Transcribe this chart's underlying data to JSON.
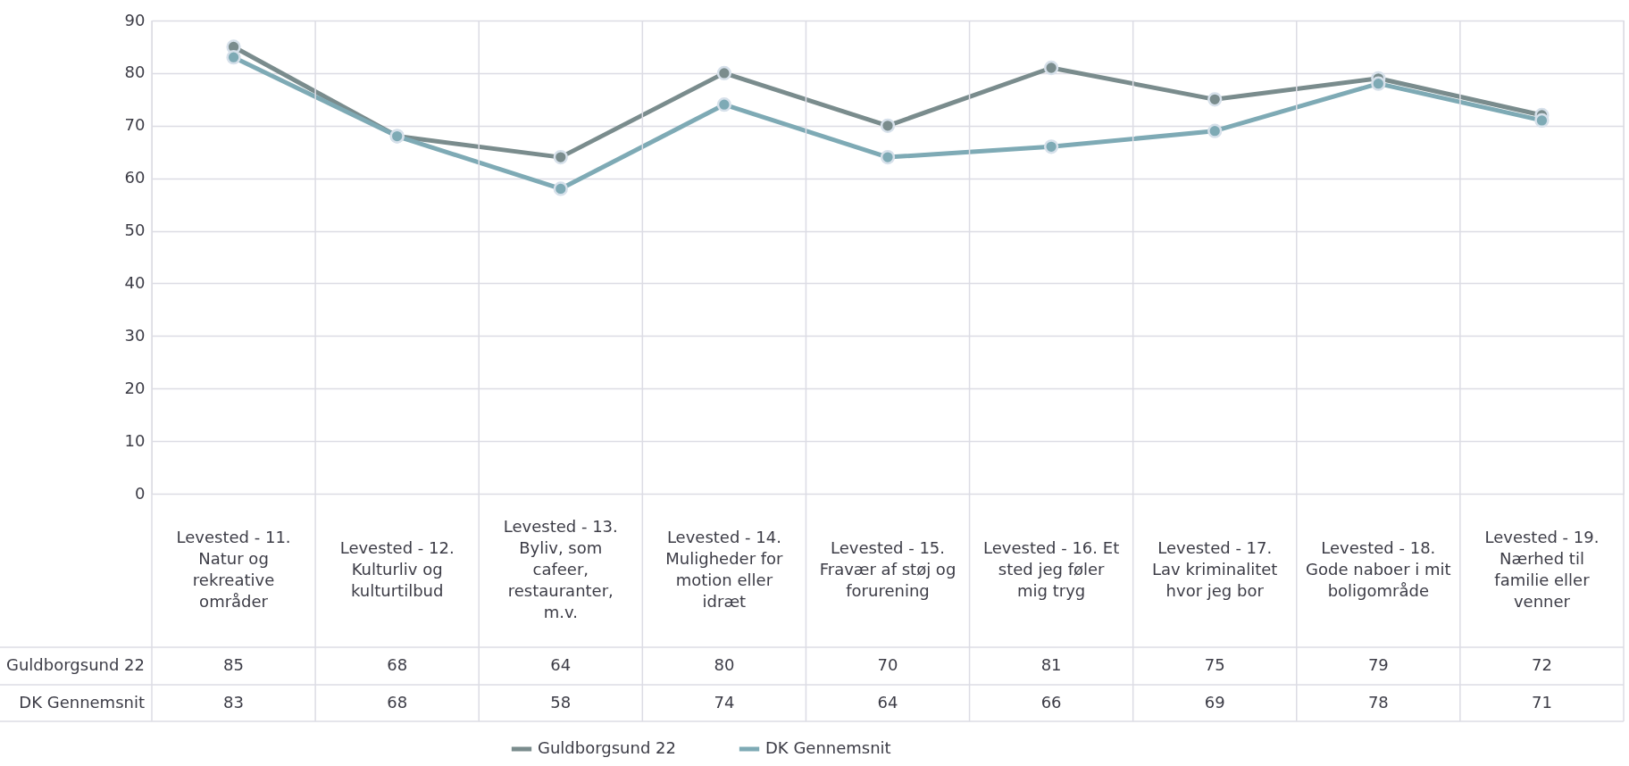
{
  "chart_data": {
    "type": "line",
    "categories": [
      "Levested - 11. Natur og rekreative områder",
      "Levested - 12. Kulturliv og kulturtilbud",
      "Levested - 13. Byliv, som cafeer, restauranter, m.v.",
      "Levested - 14. Muligheder for motion eller idræt",
      "Levested - 15. Fravær af støj og forurening",
      "Levested - 16. Et sted jeg føler mig tryg",
      "Levested - 17. Lav kriminalitet hvor jeg bor",
      "Levested - 18. Gode naboer i mit boligområde",
      "Levested - 19. Nærhed til familie eller venner"
    ],
    "series": [
      {
        "name": "Guldborgsund 22",
        "color": "#7a8c8d",
        "values": [
          85,
          68,
          64,
          80,
          70,
          81,
          75,
          79,
          72
        ]
      },
      {
        "name": "DK Gennemsnit",
        "color": "#7eaab5",
        "values": [
          83,
          68,
          58,
          74,
          64,
          66,
          69,
          78,
          71
        ]
      }
    ],
    "ylim": [
      0,
      90
    ],
    "yticks": [
      0,
      10,
      20,
      30,
      40,
      50,
      60,
      70,
      80,
      90
    ],
    "grid": true,
    "legend": "bottom",
    "marker": "circle",
    "line_style": "solid",
    "data_labels": true
  }
}
